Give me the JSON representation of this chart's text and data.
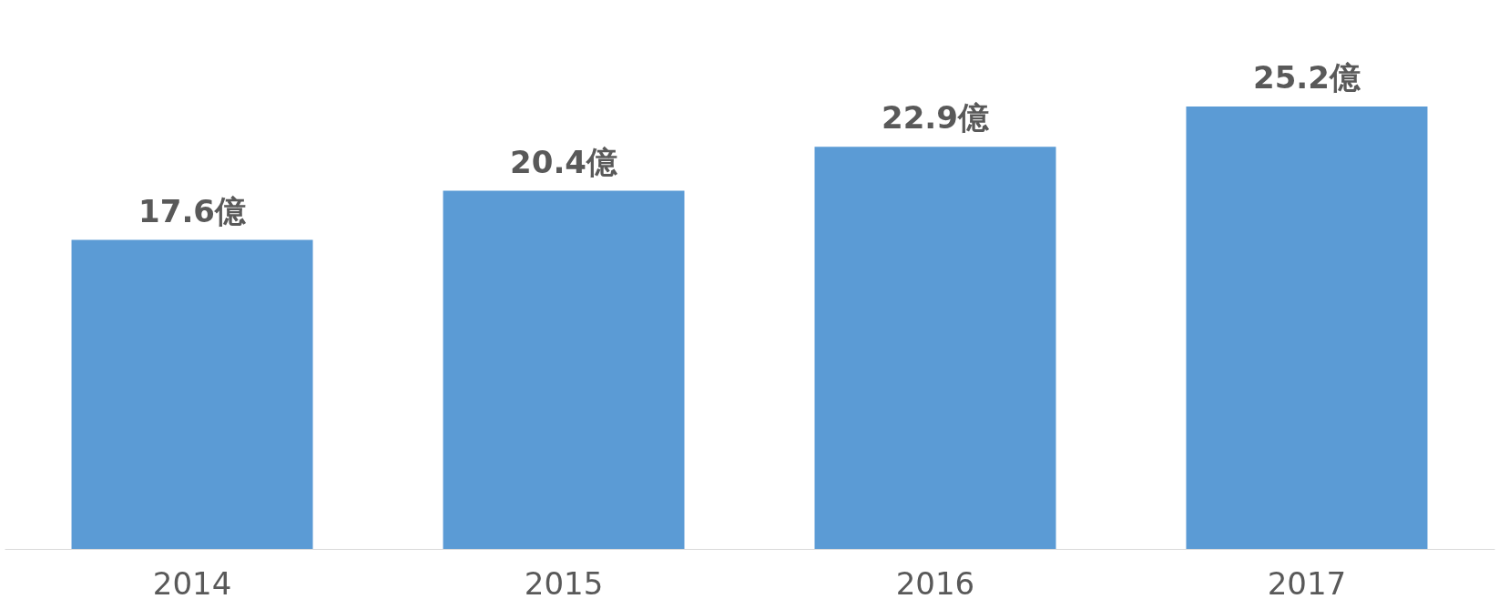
{
  "chart_data": {
    "type": "bar",
    "categories": [
      "2014",
      "2015",
      "2016",
      "2017"
    ],
    "series": [
      {
        "color": "#5b9bd5",
        "values": [
          17.6,
          20.4,
          22.9,
          25.2
        ],
        "value_labels": [
          "17.6億",
          "20.4億",
          "22.9億",
          "25.2億"
        ]
      }
    ],
    "tick_labels": "x"
  }
}
